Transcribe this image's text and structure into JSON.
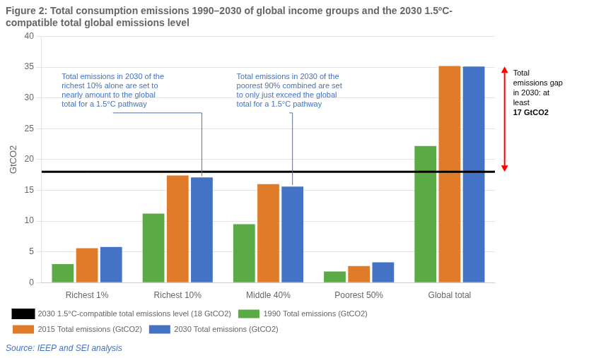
{
  "chart_data": {
    "type": "bar",
    "title": [
      "Figure 2: Total consumption emissions 1990–2030 of global income groups and the 2030 1.5ºC-",
      "compatible total global emissions level"
    ],
    "categories": [
      "Richest 1%",
      "Richest 10%",
      "Middle 40%",
      "Poorest 50%",
      "Global total"
    ],
    "series": [
      {
        "name": "1990 Total emissions (GtCO2)",
        "color": "#5aaa46",
        "values": [
          3.0,
          11.2,
          9.5,
          1.8,
          22.2
        ]
      },
      {
        "name": "2015 Total emissions (GtCO2)",
        "color": "#e07b2a",
        "values": [
          5.6,
          17.4,
          16.0,
          2.7,
          35.2
        ]
      },
      {
        "name": "2030 Total emissions (GtCO2)",
        "color": "#4472c4",
        "values": [
          5.8,
          17.1,
          15.6,
          3.3,
          35.1
        ]
      },
      {
        "name": "2030 1.5°C-compatible total emissions level (18 GtCO2)",
        "type": "line",
        "color": "#000000",
        "values": [
          18.0,
          18.0,
          18.0,
          18.0,
          18.0
        ]
      }
    ],
    "ylabel": "GtCO2",
    "ylim": [
      0,
      40
    ],
    "yticks": [
      0,
      5,
      10,
      15,
      20,
      25,
      30,
      35,
      40
    ],
    "grid": true,
    "legend": "lower left",
    "annotations": [
      {
        "text": "Total emissions in 2030 of the\nrichest 10% alone are set to\nnearly amount to the global\ntotal for a 1.5°C pathway",
        "category": "Richest 10%",
        "series": "2030 Total emissions (GtCO2)",
        "color": "#4472c4"
      },
      {
        "text": "Total emissions in 2030 of the\npoorest 90% combined are set\nto only just exceed the global\ntotal for a 1.5°C pathway",
        "category": "Middle 40%",
        "series": "2030 Total emissions (GtCO2)",
        "color": "#4472c4"
      }
    ],
    "gap": {
      "text": "Total\nemissions gap\nin 2030: at\nleast\n17 GtCO2",
      "category": "Global total",
      "from": 35.1,
      "to": 18.0,
      "color": "#ff0000",
      "text_color": "#000000"
    },
    "source": {
      "text": "Source: IEEP and SEI analysis",
      "color": "#4472c4"
    }
  }
}
